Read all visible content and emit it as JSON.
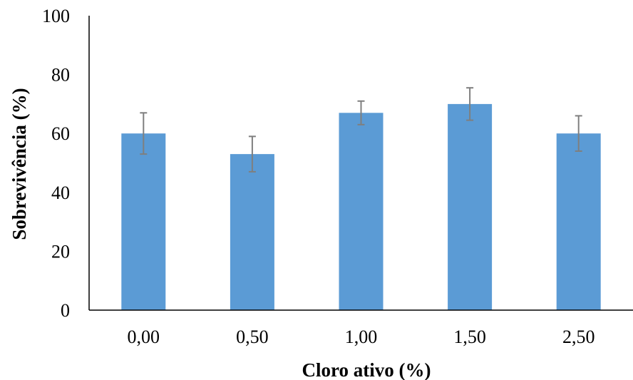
{
  "chart_data": {
    "type": "bar",
    "title": "",
    "xlabel": "Cloro ativo (%)",
    "ylabel": "Sobrevivência (%)",
    "categories": [
      "0,00",
      "0,50",
      "1,00",
      "1,50",
      "2,50"
    ],
    "values": [
      60,
      53,
      67,
      70,
      60
    ],
    "error": [
      7,
      6,
      4,
      5.5,
      6
    ],
    "ylim": [
      0,
      100
    ],
    "yticks": [
      "0",
      "20",
      "40",
      "60",
      "80",
      "100"
    ],
    "ytick_values": [
      0,
      20,
      40,
      60,
      80,
      100
    ],
    "grid": false,
    "legend": "none",
    "colors": {
      "bar": "#5b9bd5",
      "error_bar": "#7f7f7f",
      "axis": "#000000"
    }
  }
}
